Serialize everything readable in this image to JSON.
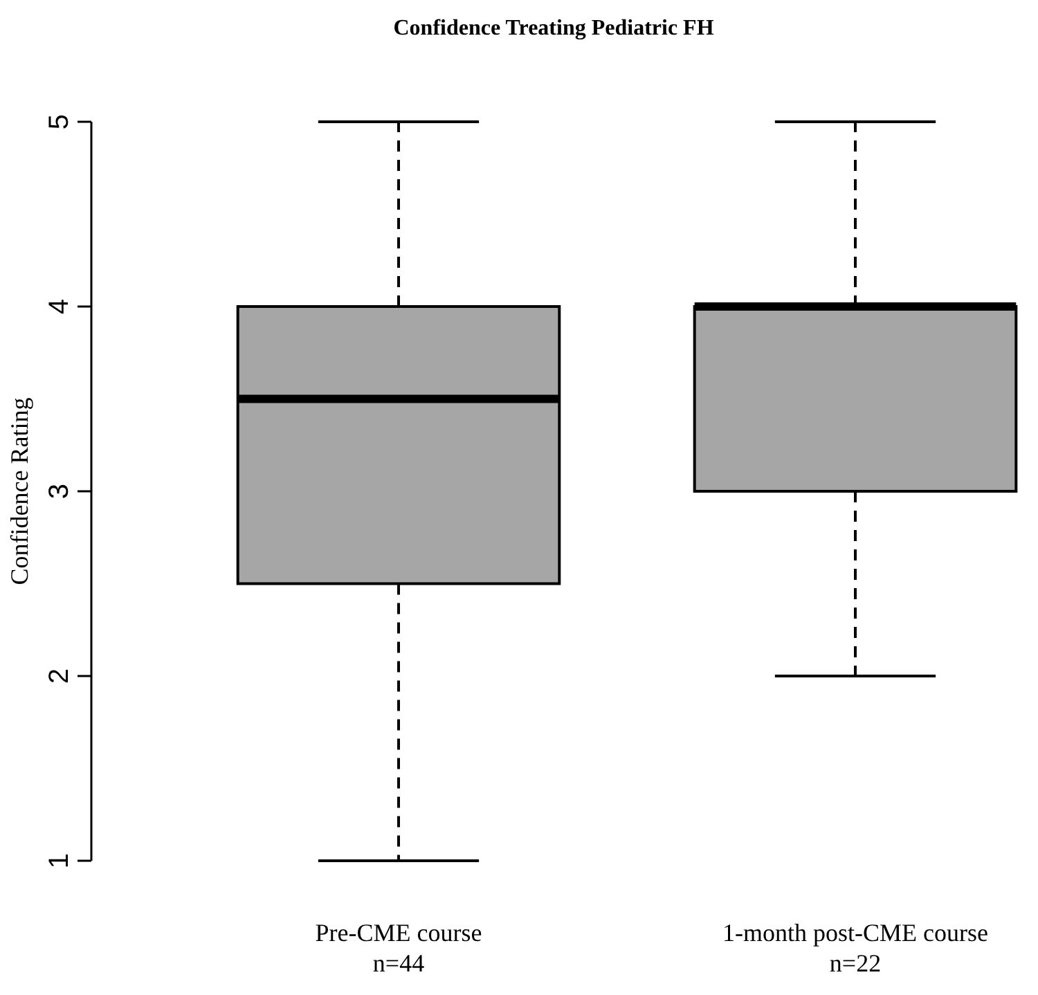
{
  "chart_data": {
    "type": "box",
    "title": "Confidence Treating Pediatric FH",
    "ylabel": "Confidence  Rating",
    "categories": [
      "Pre-CME course\nn=44",
      "1-month  post-CME course\nn=22"
    ],
    "boxes": [
      {
        "low": 1,
        "q1": 2.5,
        "median": 3.5,
        "q3": 4,
        "high": 5
      },
      {
        "low": 2,
        "q1": 3,
        "median": 4,
        "q3": 4,
        "high": 5
      }
    ],
    "color": "#a6a6a6",
    "ylim": [
      1,
      5
    ],
    "yticks": [
      1,
      2,
      3,
      4,
      5
    ],
    "grid": false
  }
}
